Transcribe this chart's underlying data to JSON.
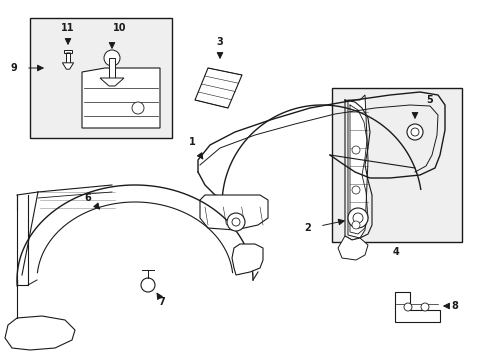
{
  "bg_color": "#ffffff",
  "fig_width": 4.89,
  "fig_height": 3.6,
  "dpi": 100,
  "line_color": "#1a1a1a",
  "box_fill": "#efefef",
  "xlim": [
    0,
    489
  ],
  "ylim": [
    0,
    360
  ]
}
